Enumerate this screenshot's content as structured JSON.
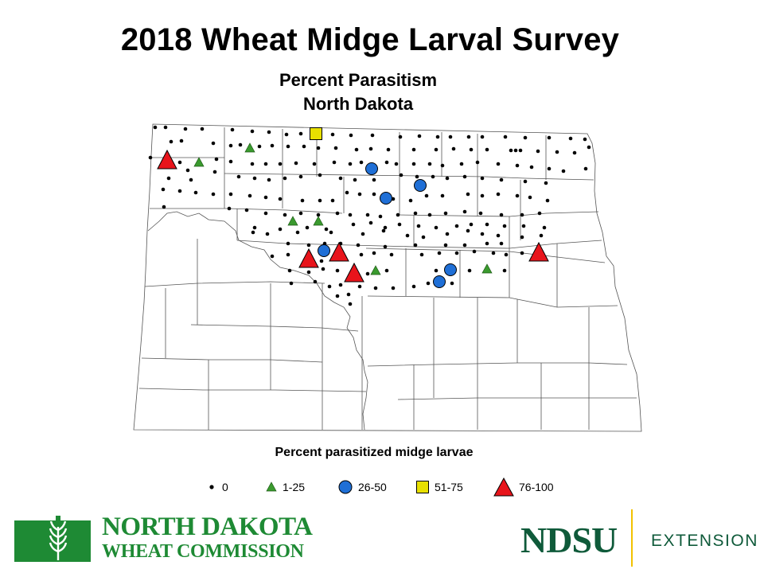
{
  "header": {
    "title": "2018 Wheat Midge Larval Survey",
    "subtitle_line1": "Percent Parasitism",
    "subtitle_line2": "North Dakota"
  },
  "legend": {
    "title": "Percent parasitized midge larvae",
    "items": [
      {
        "label": "0",
        "symbol": "dot",
        "color": "#000000"
      },
      {
        "label": "1-25",
        "symbol": "small-triangle",
        "color": "#3a9a2e"
      },
      {
        "label": "26-50",
        "symbol": "circle",
        "color": "#1f6fd6"
      },
      {
        "label": "51-75",
        "symbol": "square",
        "color": "#e8e000"
      },
      {
        "label": "76-100",
        "symbol": "large-triangle",
        "color": "#e8141b"
      }
    ]
  },
  "logos": {
    "left_line1": "NORTH DAKOTA",
    "left_line2": "WHEAT COMMISSION",
    "right_brand": "NDSU",
    "right_unit": "EXTENSION"
  },
  "colors": {
    "ndwc_green": "#1e8a34",
    "ndsu_green": "#0f5a3a",
    "divider_gold": "#f2c200"
  }
}
